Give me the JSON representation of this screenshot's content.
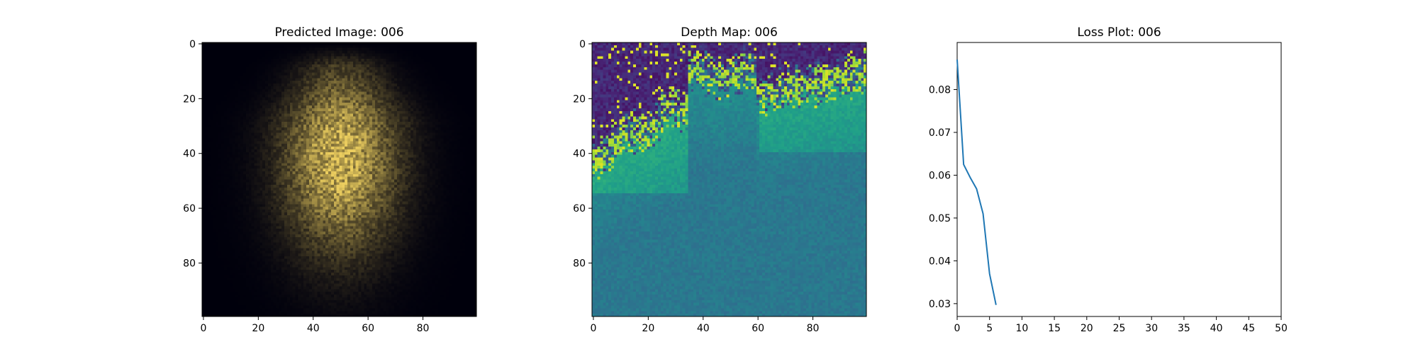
{
  "chart_data": [
    {
      "type": "heatmap",
      "title": "Predicted Image: 006",
      "content": "rgb-image",
      "colormap": "RGB (black to yellow)",
      "grid": false,
      "xlim": [
        0,
        99
      ],
      "ylim": [
        0,
        99
      ],
      "y_inverted": true,
      "xticks": [
        0,
        20,
        40,
        60,
        80
      ],
      "yticks": [
        0,
        20,
        40,
        60,
        80
      ]
    },
    {
      "type": "heatmap",
      "title": "Depth Map: 006",
      "content": "depth-map",
      "colormap": "viridis",
      "grid": false,
      "xlim": [
        0,
        99
      ],
      "ylim": [
        0,
        99
      ],
      "y_inverted": true,
      "xticks": [
        0,
        20,
        40,
        60,
        80
      ],
      "yticks": [
        0,
        20,
        40,
        60,
        80
      ]
    },
    {
      "type": "line",
      "title": "Loss Plot: 006",
      "grid": false,
      "xlim": [
        0,
        50
      ],
      "ylim": [
        0.027,
        0.091
      ],
      "xticks": [
        0,
        5,
        10,
        15,
        20,
        25,
        30,
        35,
        40,
        45,
        50
      ],
      "yticks": [
        0.03,
        0.04,
        0.05,
        0.06,
        0.07,
        0.08
      ],
      "ytick_labels": [
        "0.03",
        "0.04",
        "0.05",
        "0.06",
        "0.07",
        "0.08"
      ],
      "series": [
        {
          "color": "#1f77b4",
          "x": [
            0,
            1,
            2,
            3,
            4,
            5,
            6
          ],
          "y": [
            0.087,
            0.0625,
            0.0595,
            0.0568,
            0.051,
            0.037,
            0.0297
          ]
        }
      ]
    }
  ]
}
